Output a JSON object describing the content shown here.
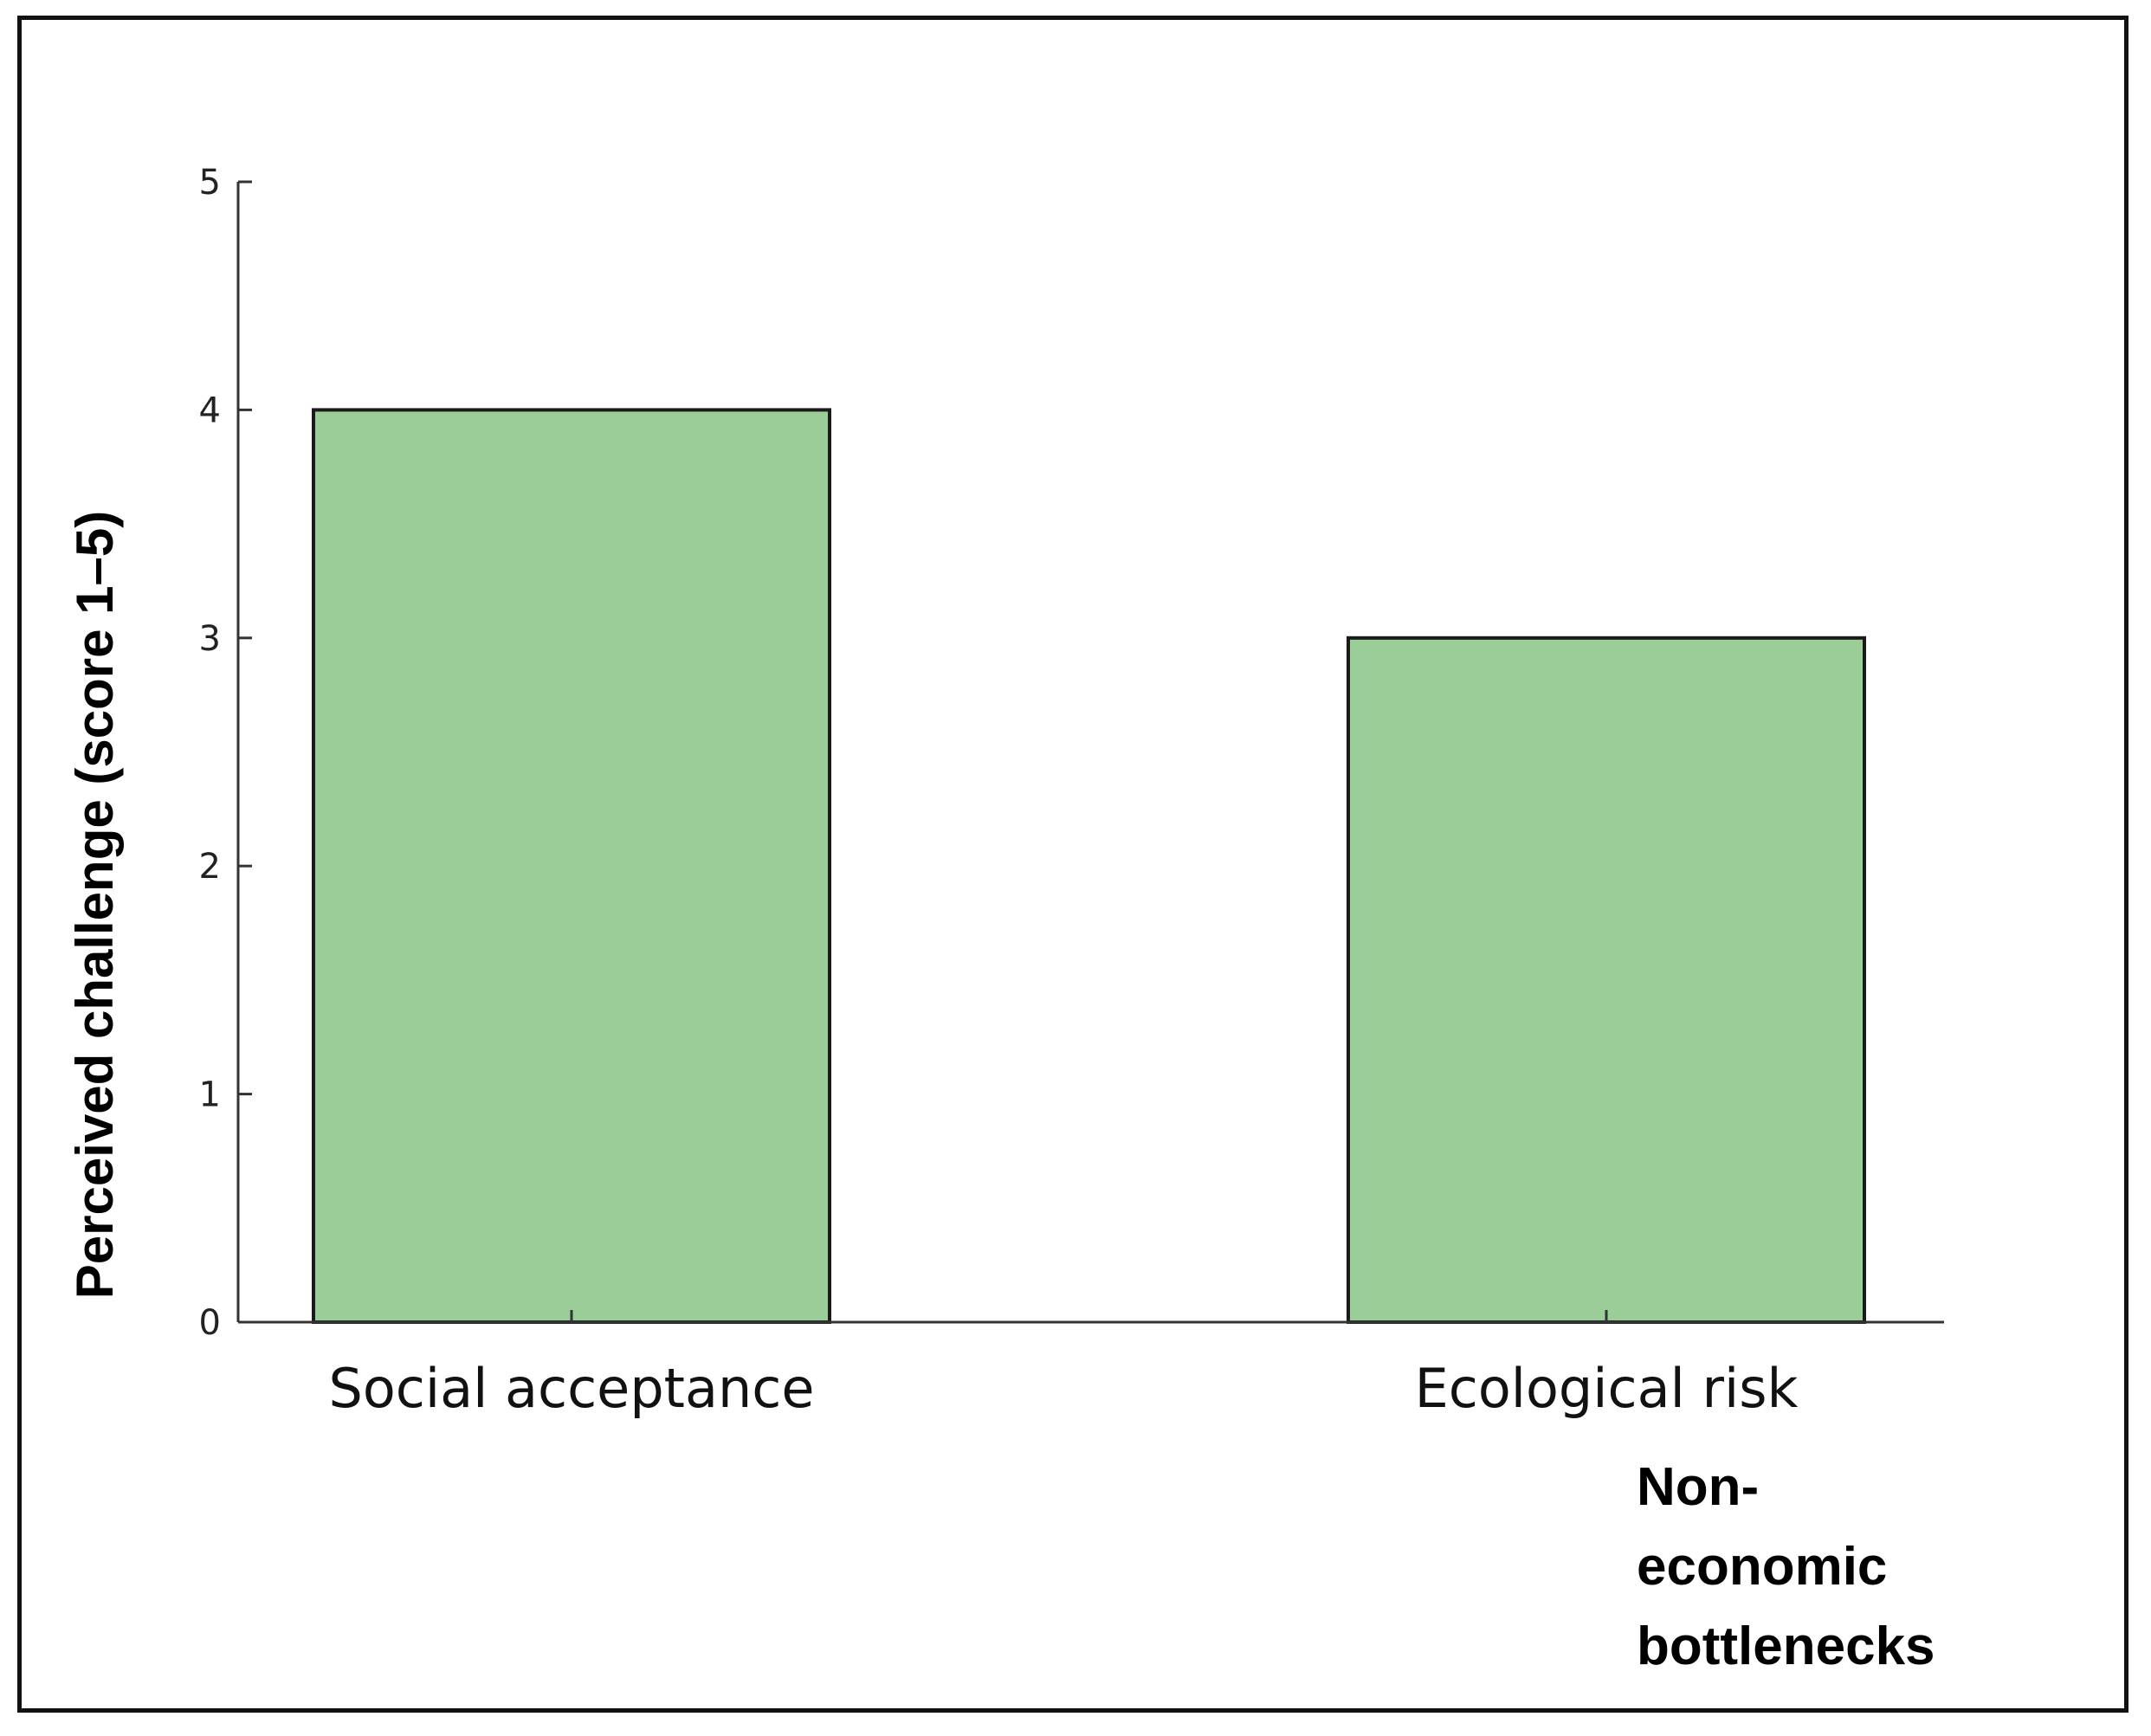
{
  "chart_data": {
    "type": "bar",
    "categories": [
      "Social acceptance",
      "Ecological risk"
    ],
    "values": [
      4,
      3
    ],
    "title": "",
    "xlabel": "Non-economic bottlenecks",
    "xlabel_lines": [
      "Non-",
      "economic",
      "bottlenecks"
    ],
    "ylabel": "Perceived  challenge  (score 1–5)",
    "ylim": [
      0,
      5
    ],
    "yticks": [
      0,
      1,
      2,
      3,
      4,
      5
    ],
    "grid": false,
    "legend": "none",
    "bar_color": "#9acd98",
    "bar_edge_color": "#1a1a1a"
  }
}
